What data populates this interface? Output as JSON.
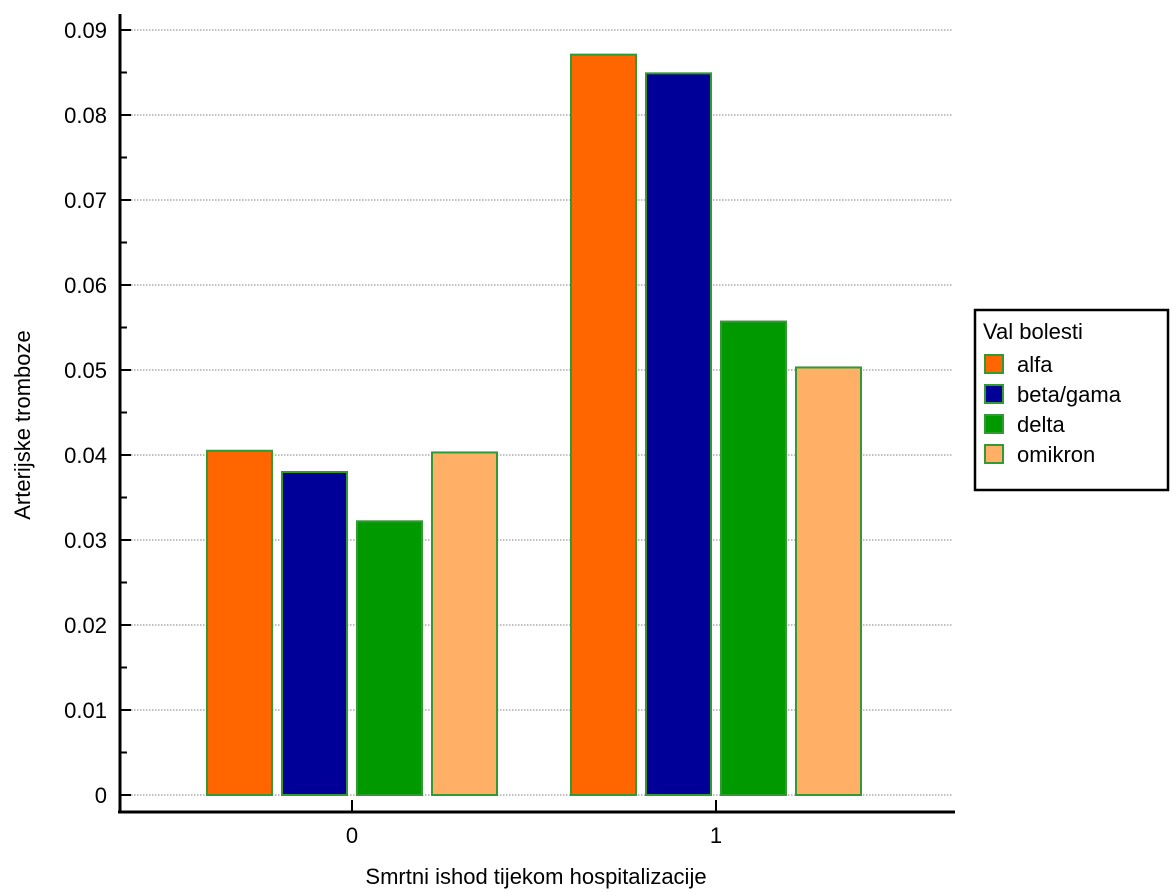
{
  "chart_data": {
    "type": "bar",
    "xlabel": "Smrtni ishod tijekom hospitalizacije",
    "ylabel": "Arterijske tromboze",
    "categories": [
      "0",
      "1"
    ],
    "ylim": [
      0,
      0.09
    ],
    "y_ticks": [
      "0",
      "0.01",
      "0.02",
      "0.03",
      "0.04",
      "0.05",
      "0.06",
      "0.07",
      "0.08",
      "0.09"
    ],
    "grid": true,
    "legend": {
      "title": "Val bolesti",
      "placement": "right"
    },
    "series": [
      {
        "name": "alfa",
        "color": "#ff6600",
        "values": [
          0.0405,
          0.0871
        ]
      },
      {
        "name": "beta/gama",
        "color": "#000099",
        "values": [
          0.038,
          0.0849
        ]
      },
      {
        "name": "delta",
        "color": "#009900",
        "values": [
          0.0322,
          0.0557
        ]
      },
      {
        "name": "omikron",
        "color": "#ffb066",
        "values": [
          0.0403,
          0.0503
        ]
      }
    ],
    "bar_outline_color": "#339933"
  }
}
